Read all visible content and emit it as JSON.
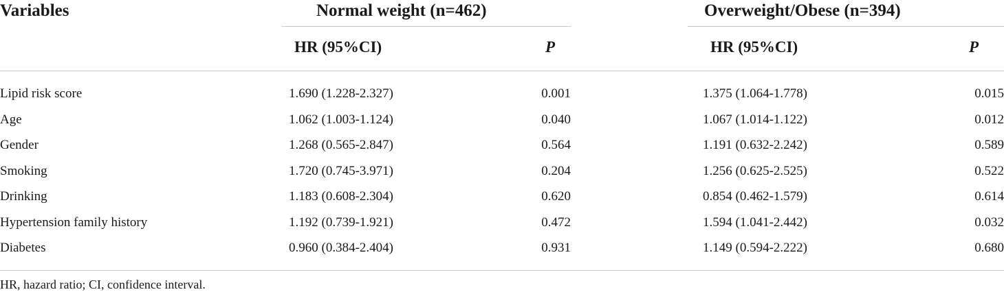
{
  "table": {
    "header": {
      "variables": "Variables",
      "group1": "Normal weight (n=462)",
      "group2": "Overweight/Obese (n=394)",
      "hr_label": "HR (95%CI)",
      "p_label": "P"
    },
    "rows": [
      {
        "variable": "Lipid risk score",
        "hr1": "1.690 (1.228-2.327)",
        "p1": "0.001",
        "hr2": "1.375 (1.064-1.778)",
        "p2": "0.015"
      },
      {
        "variable": "Age",
        "hr1": "1.062 (1.003-1.124)",
        "p1": "0.040",
        "hr2": "1.067 (1.014-1.122)",
        "p2": "0.012"
      },
      {
        "variable": "Gender",
        "hr1": "1.268 (0.565-2.847)",
        "p1": "0.564",
        "hr2": "1.191 (0.632-2.242)",
        "p2": "0.589"
      },
      {
        "variable": "Smoking",
        "hr1": "1.720 (0.745-3.971)",
        "p1": "0.204",
        "hr2": "1.256 (0.625-2.525)",
        "p2": "0.522"
      },
      {
        "variable": "Drinking",
        "hr1": "1.183 (0.608-2.304)",
        "p1": "0.620",
        "hr2": "0.854 (0.462-1.579)",
        "p2": "0.614"
      },
      {
        "variable": "Hypertension family history",
        "hr1": "1.192 (0.739-1.921)",
        "p1": "0.472",
        "hr2": "1.594 (1.041-2.442)",
        "p2": "0.032"
      },
      {
        "variable": "Diabetes",
        "hr1": "0.960 (0.384-2.404)",
        "p1": "0.931",
        "hr2": "1.149 (0.594-2.222)",
        "p2": "0.680"
      }
    ],
    "footnote": "HR, hazard ratio; CI, confidence interval."
  }
}
